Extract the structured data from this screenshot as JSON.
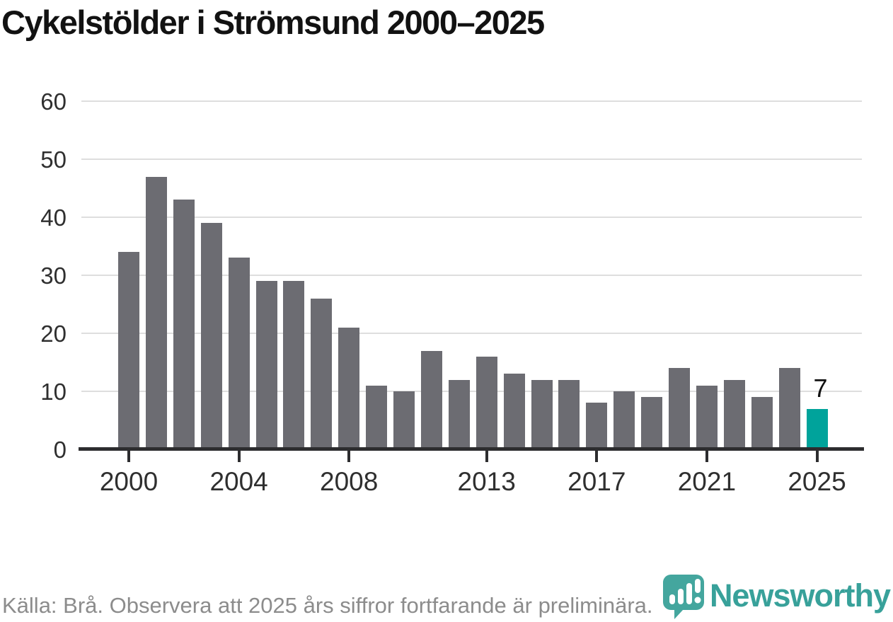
{
  "title": "Cykelstölder i Strömsund 2000–2025",
  "chart_data": {
    "type": "bar",
    "x": [
      2000,
      2001,
      2002,
      2003,
      2004,
      2005,
      2006,
      2007,
      2008,
      2009,
      2010,
      2011,
      2012,
      2013,
      2014,
      2015,
      2016,
      2017,
      2018,
      2019,
      2020,
      2021,
      2022,
      2023,
      2024,
      2025
    ],
    "values": [
      34,
      47,
      43,
      39,
      33,
      29,
      29,
      26,
      21,
      11,
      10,
      17,
      12,
      16,
      13,
      12,
      12,
      8,
      10,
      9,
      14,
      11,
      12,
      9,
      14,
      7
    ],
    "title": "Cykelstölder i Strömsund 2000–2025",
    "xlabel": "",
    "ylabel": "",
    "ylim": [
      0,
      60
    ],
    "yticks": [
      0,
      10,
      20,
      30,
      40,
      50,
      60
    ],
    "xtick_years": [
      2000,
      2004,
      2008,
      2013,
      2017,
      2021,
      2025
    ],
    "grid": true,
    "legend": false,
    "highlight_index": 25,
    "highlight_label": "7",
    "bar_color": "#6c6c72",
    "highlight_color": "#00a39b",
    "grid_color": "#dedede",
    "axis_color": "#2d2d2f",
    "label_color": "#2f2f2f"
  },
  "footer": {
    "source_note": "Källa: Brå. Observera att 2025 års siffror fortfarande är preliminära."
  },
  "branding": {
    "name": "Newsworthy",
    "icon": "bar-chart-pin-icon",
    "icon_color": "#44a69e",
    "text_color": "#38a19a"
  }
}
